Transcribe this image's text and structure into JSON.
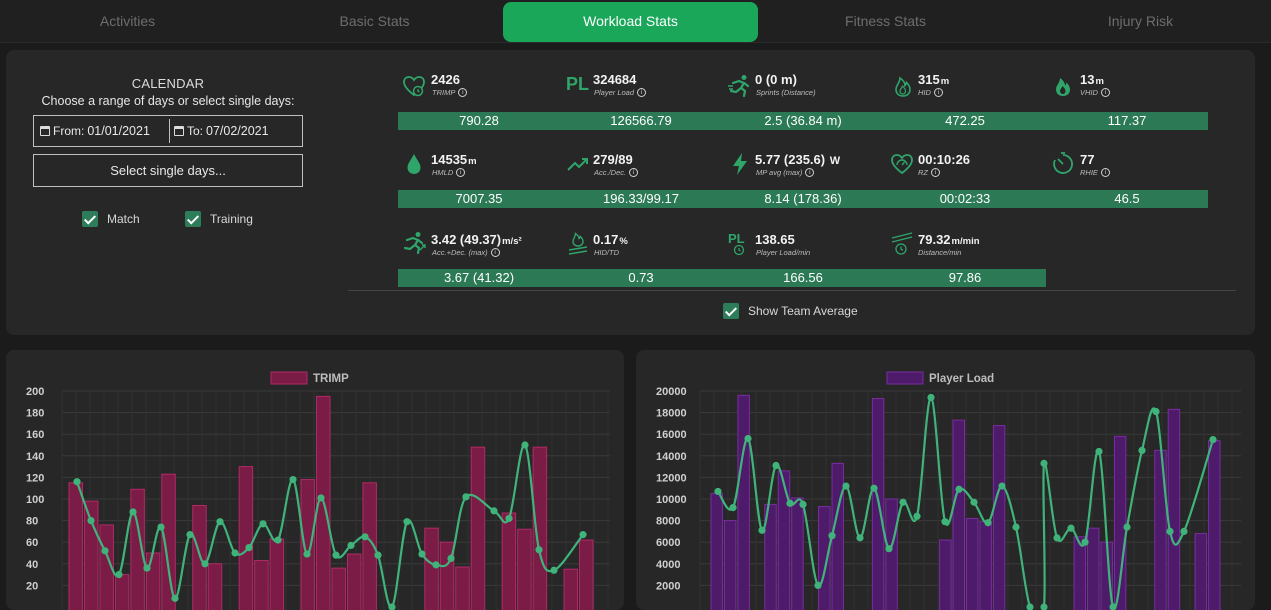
{
  "tabs": [
    {
      "label": "Activities",
      "active": false
    },
    {
      "label": "Basic Stats",
      "active": false
    },
    {
      "label": "Workload Stats",
      "active": true
    },
    {
      "label": "Fitness Stats",
      "active": false
    },
    {
      "label": "Injury Risk",
      "active": false
    }
  ],
  "calendar": {
    "title": "CALENDAR",
    "subtitle": "Choose a range of days or select single days:",
    "from_label": "From:",
    "from_value": "01/01/2021",
    "to_label": "To:",
    "to_value": "07/02/2021",
    "single_days_button": "Select single days...",
    "match_label": "Match",
    "match_checked": true,
    "training_label": "Training",
    "training_checked": true
  },
  "stats": [
    {
      "icon": "heart-icon",
      "value": "2426",
      "unit": "",
      "label": "TRIMP",
      "avg": "790.28"
    },
    {
      "icon": "player-load-icon",
      "value": "324684",
      "unit": "",
      "label": "Player Load",
      "avg": "126566.79"
    },
    {
      "icon": "sprint-icon",
      "value": "0 (0 m)",
      "unit": "",
      "label": "Sprints (Distance)",
      "avg": "2.5 (36.84 m)"
    },
    {
      "icon": "flame-outline-icon",
      "value": "315",
      "unit": "m",
      "label": "HID",
      "avg": "472.25"
    },
    {
      "icon": "flame-filled-icon",
      "value": "13",
      "unit": "m",
      "label": "VHID",
      "avg": "117.37"
    },
    {
      "icon": "drop-icon",
      "value": "14535",
      "unit": "m",
      "label": "HMLD",
      "avg": "7007.35"
    },
    {
      "icon": "trend-up-icon",
      "value": "279/89",
      "unit": "",
      "label": "Acc./Dec.",
      "avg": "196.33/99.17"
    },
    {
      "icon": "lightning-icon",
      "value": "5.77 (235.6)",
      "unit": "W",
      "label": "MP avg (max)",
      "avg": "8.14 (178.36)"
    },
    {
      "icon": "heart-zone-icon",
      "value": "00:10:26",
      "unit": "",
      "label": "RZ",
      "avg": "00:02:33"
    },
    {
      "icon": "timer-icon",
      "value": "77",
      "unit": "",
      "label": "RHIE",
      "avg": "46.5"
    },
    {
      "icon": "acc-dec-icon",
      "value": "3.42 (49.37)",
      "unit": "m/s²",
      "label": "Acc.+Dec. (max)",
      "avg": "3.67 (41.32)"
    },
    {
      "icon": "hid-td-icon",
      "value": "0.17",
      "unit": "%",
      "label": "HID/TD",
      "avg": "0.73"
    },
    {
      "icon": "player-load-min-icon",
      "value": "138.65",
      "unit": "",
      "label": "Player Load/min",
      "avg": "166.56"
    },
    {
      "icon": "distance-min-icon",
      "value": "79.32",
      "unit": "m/min",
      "label": "Distance/min",
      "avg": "97.86"
    }
  ],
  "show_team_average": {
    "label": "Show Team Average",
    "checked": true
  },
  "colors": {
    "accent": "#1aa75a",
    "avg_bar": "#2c7a55",
    "trimp": "#8a1f4c",
    "player_load": "#5a1f75",
    "line": "#3fb37a"
  },
  "chart_data": [
    {
      "type": "bar",
      "legend": "TRIMP",
      "ylim": [
        0,
        200
      ],
      "yticks": [
        20,
        40,
        60,
        80,
        100,
        120,
        140,
        160,
        180,
        200
      ],
      "bars": [
        115,
        98,
        76,
        30,
        109,
        50,
        123,
        0,
        94,
        40,
        0,
        130,
        43,
        63,
        0,
        118,
        195,
        36,
        49,
        115,
        0,
        0,
        0,
        73,
        60,
        37,
        148,
        0,
        87,
        72,
        148,
        0,
        35,
        62
      ],
      "line": [
        116,
        80,
        52,
        30,
        88,
        36,
        74,
        8,
        67,
        40,
        79,
        50,
        55,
        77,
        62,
        118,
        49,
        101,
        48,
        57,
        65,
        48,
        0,
        79,
        49,
        39,
        45,
        102,
        89,
        82,
        150,
        53,
        34,
        67
      ],
      "line_x": [
        77,
        91,
        105,
        119,
        133,
        147,
        161,
        175,
        190,
        205,
        220,
        235,
        249,
        263,
        278,
        293,
        307,
        321,
        336,
        351,
        365,
        378,
        392,
        407,
        422,
        436,
        451,
        466,
        494,
        509,
        525,
        539,
        554,
        583
      ]
    },
    {
      "type": "bar",
      "legend": "Player Load",
      "ylim": [
        0,
        20000
      ],
      "yticks": [
        2000,
        4000,
        6000,
        8000,
        10000,
        12000,
        14000,
        16000,
        18000,
        20000
      ],
      "bars": [
        10500,
        8000,
        19600,
        0,
        9500,
        12600,
        10100,
        0,
        9300,
        13300,
        0,
        0,
        19300,
        10000,
        0,
        0,
        0,
        6200,
        17300,
        8200,
        7900,
        16800,
        0,
        0,
        0,
        0,
        0,
        6500,
        7300,
        6000,
        15800,
        0,
        0,
        14500,
        18300,
        0,
        6800,
        15400
      ],
      "line": [
        10700,
        9200,
        15600,
        7100,
        13100,
        9600,
        9500,
        2000,
        6600,
        11200,
        6400,
        11000,
        5400,
        9700,
        8400,
        19400,
        7900,
        10900,
        9700,
        7800,
        11200,
        7400,
        0,
        0,
        13300,
        6400,
        7300,
        6000,
        14400,
        0,
        7400,
        14500,
        18100,
        7000,
        7000,
        15500
      ],
      "line_x": [
        718,
        733,
        748,
        762,
        776,
        790,
        803,
        818,
        832,
        846,
        860,
        874,
        889,
        903,
        917,
        931,
        945,
        959,
        974,
        988,
        1002,
        1016,
        1030,
        1044,
        1044,
        1057,
        1071,
        1085,
        1099,
        1113,
        1127,
        1142,
        1156,
        1170,
        1184,
        1213
      ]
    }
  ]
}
